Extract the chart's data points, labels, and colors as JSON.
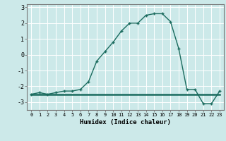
{
  "xlabel": "Humidex (Indice chaleur)",
  "background_color": "#cce9e9",
  "grid_color": "#ffffff",
  "line_color": "#1a6b5e",
  "x_values": [
    0,
    1,
    2,
    3,
    4,
    5,
    6,
    7,
    8,
    9,
    10,
    11,
    12,
    13,
    14,
    15,
    16,
    17,
    18,
    19,
    20,
    21,
    22,
    23
  ],
  "y_values": [
    -2.5,
    -2.4,
    -2.5,
    -2.4,
    -2.3,
    -2.3,
    -2.2,
    -1.7,
    -0.4,
    0.2,
    0.8,
    1.5,
    2.0,
    2.0,
    2.5,
    2.6,
    2.6,
    2.1,
    0.4,
    -2.2,
    -2.2,
    -3.1,
    -3.1,
    -2.3
  ],
  "y2_values": [
    -2.5,
    -2.5,
    -2.5,
    -2.5,
    -2.5,
    -2.5,
    -2.5,
    -2.5,
    -2.5,
    -2.5,
    -2.5,
    -2.5,
    -2.5,
    -2.5,
    -2.5,
    -2.5,
    -2.5,
    -2.5,
    -2.5,
    -2.5,
    -2.5,
    -2.5,
    -2.5,
    -2.5
  ],
  "ylim": [
    -3.5,
    3.2
  ],
  "xlim": [
    -0.5,
    23.5
  ],
  "yticks": [
    -3,
    -2,
    -1,
    0,
    1,
    2,
    3
  ],
  "xticks": [
    0,
    1,
    2,
    3,
    4,
    5,
    6,
    7,
    8,
    9,
    10,
    11,
    12,
    13,
    14,
    15,
    16,
    17,
    18,
    19,
    20,
    21,
    22,
    23
  ]
}
